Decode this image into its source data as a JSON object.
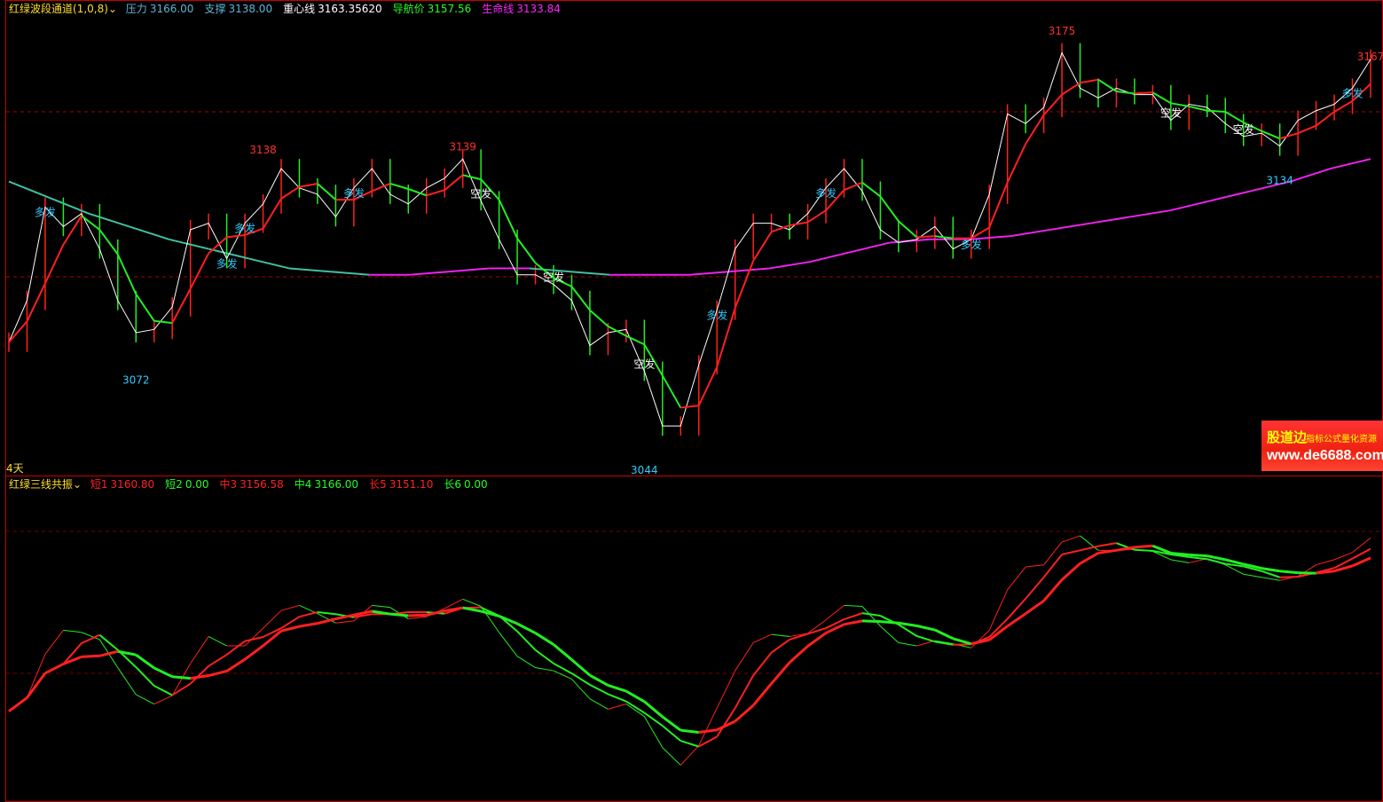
{
  "top_panel": {
    "indicator_name": "红绿波段通道(1,0,8)",
    "items": [
      {
        "label": "压力",
        "value": "3166.00",
        "color": "#5ab4d6"
      },
      {
        "label": "支撑",
        "value": "3138.00",
        "color": "#5ab4d6"
      },
      {
        "label": "重心线",
        "value": "3163.35620",
        "color": "#ffffff"
      },
      {
        "label": "导航价",
        "value": "3157.56",
        "color": "#22ff22"
      },
      {
        "label": "生命线",
        "value": "3133.84",
        "color": "#ff22ff"
      }
    ],
    "period_label": "4天"
  },
  "bottom_panel": {
    "indicator_name": "红绿三线共振",
    "items": [
      {
        "label": "短1",
        "value": "3160.80",
        "color": "#ff2020"
      },
      {
        "label": "短2",
        "value": "0.00",
        "color": "#22ff22"
      },
      {
        "label": "中3",
        "value": "3156.58",
        "color": "#ff2020"
      },
      {
        "label": "中4",
        "value": "3166.00",
        "color": "#22ff22"
      },
      {
        "label": "长5",
        "value": "3151.10",
        "color": "#ff2020"
      },
      {
        "label": "长6",
        "value": "0.00",
        "color": "#22ff22"
      }
    ]
  },
  "watermark": {
    "brand": "股道边",
    "slogan": "指标公式量化资源",
    "url": "www.de6688.com"
  },
  "chart_data": {
    "type": "line",
    "ylim": [
      3044,
      3175
    ],
    "close": [
      3081,
      3094,
      3123,
      3117,
      3121,
      3110,
      3094,
      3084,
      3085,
      3092,
      3116,
      3118,
      3107,
      3118,
      3124,
      3135,
      3129,
      3127,
      3120,
      3129,
      3135,
      3127,
      3124,
      3129,
      3132,
      3138,
      3125,
      3113,
      3102,
      3102,
      3099,
      3094,
      3080,
      3084,
      3085,
      3072,
      3055,
      3055,
      3074,
      3091,
      3110,
      3118,
      3118,
      3116,
      3121,
      3129,
      3135,
      3128,
      3116,
      3112,
      3113,
      3117,
      3110,
      3113,
      3127,
      3152,
      3149,
      3154,
      3171,
      3160,
      3157,
      3160,
      3158,
      3158,
      3150,
      3155,
      3154,
      3149,
      3145,
      3146,
      3142,
      3150,
      3153,
      3155,
      3160,
      3169
    ],
    "life_line": [
      3131,
      3126,
      3121,
      3117,
      3113,
      3110,
      3107,
      3104,
      3103,
      3102,
      3102,
      3103,
      3104,
      3104,
      3103,
      3102,
      3102,
      3102,
      3103,
      3104,
      3106,
      3109,
      3112,
      3113,
      3113,
      3114,
      3116,
      3118,
      3120,
      3122,
      3125,
      3128,
      3131,
      3135,
      3138
    ],
    "annotations": [
      {
        "bar": 7,
        "text": "3072",
        "color": "#33ccff",
        "pos": "below",
        "value": 3072
      },
      {
        "bar": 14,
        "text": "3138",
        "color": "#ff3030",
        "pos": "above",
        "value": 3138
      },
      {
        "bar": 25,
        "text": "3139",
        "color": "#ff3030",
        "pos": "above",
        "value": 3139
      },
      {
        "bar": 35,
        "text": "3044",
        "color": "#33ccff",
        "pos": "below",
        "value": 3044
      },
      {
        "bar": 58,
        "text": "3175",
        "color": "#ff3030",
        "pos": "above",
        "value": 3175
      },
      {
        "bar": 75,
        "text": "3167",
        "color": "#ff3030",
        "pos": "above",
        "value": 3167
      },
      {
        "bar": 70,
        "text": "3134",
        "color": "#33ccff",
        "pos": "below",
        "value": 3134
      }
    ],
    "signals": [
      {
        "bar": 2,
        "text": "多发",
        "color": "#33ccff"
      },
      {
        "bar": 12,
        "text": "多发",
        "color": "#33ccff"
      },
      {
        "bar": 13,
        "text": "多发",
        "color": "#33ccff"
      },
      {
        "bar": 19,
        "text": "多发",
        "color": "#33ccff"
      },
      {
        "bar": 26,
        "text": "空发",
        "color": "#ffffff"
      },
      {
        "bar": 30,
        "text": "空发",
        "color": "#ffffff"
      },
      {
        "bar": 35,
        "text": "空发",
        "color": "#ffffff"
      },
      {
        "bar": 39,
        "text": "多发",
        "color": "#33ccff"
      },
      {
        "bar": 45,
        "text": "多发",
        "color": "#33ccff"
      },
      {
        "bar": 53,
        "text": "多发",
        "color": "#33ccff"
      },
      {
        "bar": 64,
        "text": "空发",
        "color": "#ffffff"
      },
      {
        "bar": 68,
        "text": "空发",
        "color": "#ffffff"
      },
      {
        "bar": 74,
        "text": "多发",
        "color": "#33ccff"
      }
    ]
  }
}
